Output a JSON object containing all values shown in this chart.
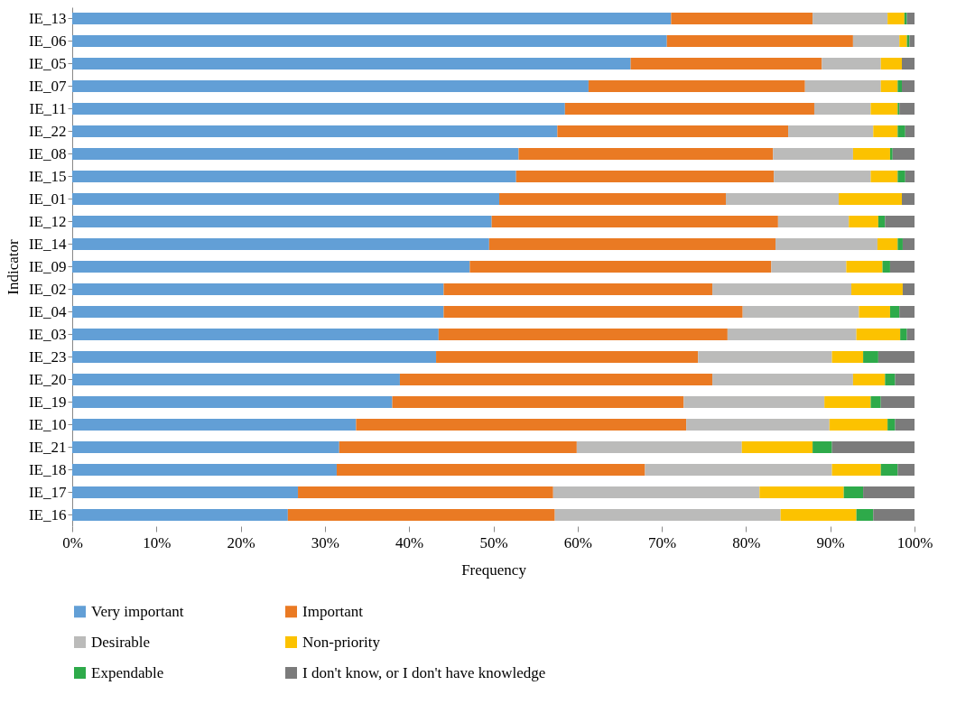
{
  "chart_data": {
    "type": "bar",
    "orientation": "horizontal",
    "stacked": true,
    "xlabel": "Frequency",
    "ylabel": "Indicator",
    "legend": "bottom",
    "grid": false,
    "categories": [
      "IE_13",
      "IE_06",
      "IE_05",
      "IE_07",
      "IE_11",
      "IE_22",
      "IE_08",
      "IE_15",
      "IE_01",
      "IE_12",
      "IE_14",
      "IE_09",
      "IE_02",
      "IE_04",
      "IE_03",
      "IE_23",
      "IE_20",
      "IE_19",
      "IE_10",
      "IE_21",
      "IE_18",
      "IE_17",
      "IE_16"
    ],
    "xlim": [
      0,
      100
    ],
    "xticks": [
      {
        "value": 0,
        "label": "0%"
      },
      {
        "value": 10,
        "label": "10%"
      },
      {
        "value": 20,
        "label": "20%"
      },
      {
        "value": 30,
        "label": "30%"
      },
      {
        "value": 40,
        "label": "40%"
      },
      {
        "value": 50,
        "label": "50%"
      },
      {
        "value": 60,
        "label": "60%"
      },
      {
        "value": 70,
        "label": "70%"
      },
      {
        "value": 80,
        "label": "80%"
      },
      {
        "value": 90,
        "label": "90%"
      },
      {
        "value": 100,
        "label": "100%"
      }
    ],
    "series": [
      {
        "name": "Very important",
        "color": "#629fd6",
        "values": [
          71.1,
          70.6,
          66.3,
          61.3,
          58.5,
          57.6,
          53.0,
          52.7,
          50.7,
          49.8,
          49.5,
          47.2,
          44.1,
          44.1,
          43.5,
          43.2,
          38.9,
          38.0,
          33.7,
          31.7,
          31.4,
          26.8,
          25.6
        ]
      },
      {
        "name": "Important",
        "color": "#ea7a23",
        "values": [
          16.8,
          22.1,
          22.7,
          25.7,
          29.6,
          27.4,
          30.2,
          30.6,
          26.9,
          34.0,
          34.0,
          35.8,
          31.9,
          35.5,
          34.3,
          31.1,
          37.1,
          34.6,
          39.2,
          28.2,
          36.6,
          30.3,
          31.7
        ]
      },
      {
        "name": "Desirable",
        "color": "#bbbbba",
        "values": [
          8.9,
          5.5,
          7.0,
          9.0,
          6.7,
          10.1,
          9.5,
          11.5,
          13.4,
          8.4,
          12.1,
          8.9,
          16.5,
          13.8,
          15.3,
          15.9,
          16.7,
          16.7,
          17.0,
          19.6,
          22.2,
          24.5,
          26.8
        ]
      },
      {
        "name": "Non-priority",
        "color": "#fcc200",
        "values": [
          2.0,
          0.9,
          2.5,
          2.0,
          3.2,
          2.9,
          4.4,
          3.2,
          7.5,
          3.5,
          2.4,
          4.3,
          6.1,
          3.7,
          5.2,
          3.7,
          3.8,
          5.5,
          6.9,
          8.4,
          5.8,
          10.0,
          9.0
        ]
      },
      {
        "name": "Expendable",
        "color": "#2eaa4a",
        "values": [
          0.3,
          0.3,
          0,
          0.5,
          0.2,
          0.9,
          0.3,
          0.9,
          0,
          0.8,
          0.6,
          0.9,
          0,
          1.1,
          0.8,
          1.8,
          1.2,
          1.2,
          0.9,
          2.3,
          2.0,
          2.3,
          2.0
        ]
      },
      {
        "name": "I don't know, or I don't have knowledge",
        "color": "#7b7b7b",
        "values": [
          0.9,
          0.6,
          1.5,
          1.5,
          1.8,
          1.1,
          2.6,
          1.1,
          1.5,
          3.5,
          1.4,
          2.9,
          1.4,
          1.8,
          0.9,
          4.3,
          2.3,
          4.0,
          2.3,
          9.8,
          2.0,
          6.1,
          4.9
        ]
      }
    ]
  }
}
